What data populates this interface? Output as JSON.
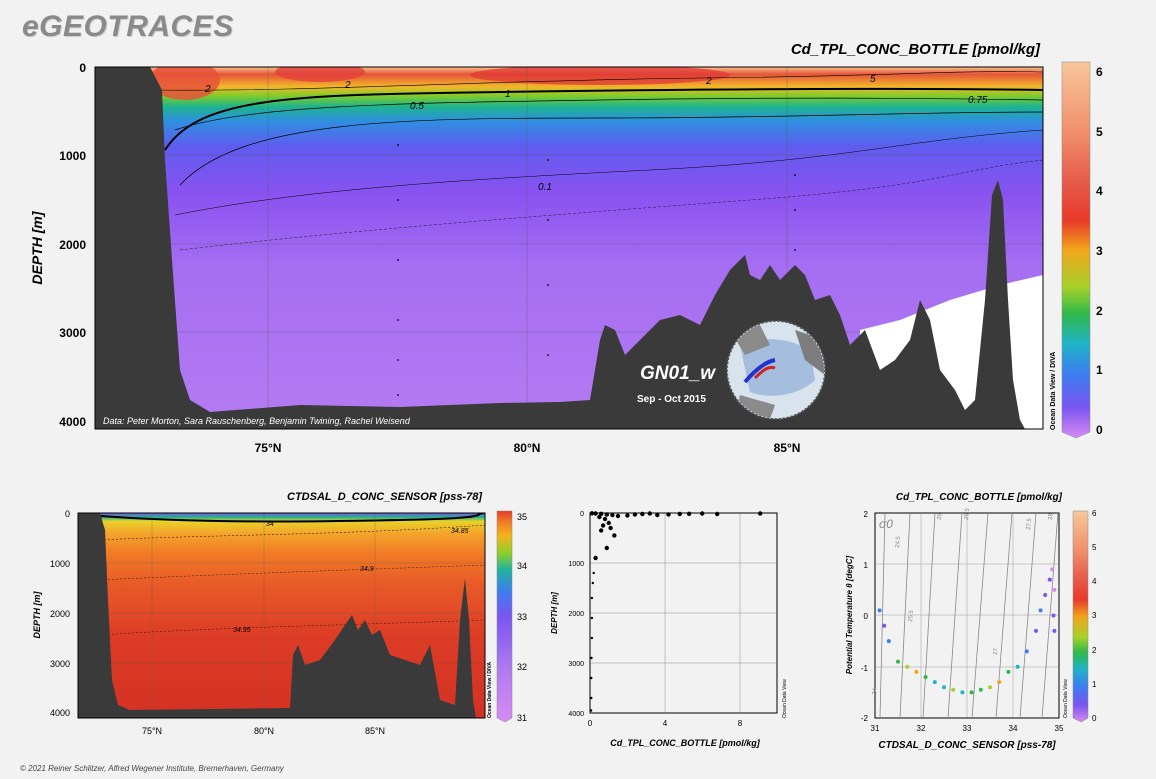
{
  "header": {
    "logo": "eGEOTRACES",
    "footer": "© 2021 Reiner Schlitzer, Alfred Wegener Institute, Bremerhaven, Germany"
  },
  "colors": {
    "seafloor": "#3a3a3a",
    "background": "#f2f2f2",
    "deep_purple": "#b57bf2",
    "mid_purple": "#9c62f2"
  },
  "chart_data": [
    {
      "id": "main-section",
      "type": "heatmap",
      "title": "Cd_TPL_CONC_BOTTLE [pmol/kg]",
      "ylabel": "DEPTH [m]",
      "xlim": [
        72,
        90
      ],
      "ylim": [
        4000,
        0
      ],
      "xticks": [
        75,
        80,
        85
      ],
      "xtick_labels": [
        "75°N",
        "80°N",
        "85°N"
      ],
      "yticks": [
        0,
        1000,
        2000,
        3000,
        4000
      ],
      "ytick_labels": [
        "0",
        "1000",
        "2000",
        "3000",
        "4000"
      ],
      "colorbar": {
        "min": 0,
        "max": 6,
        "ticks": [
          "0",
          "1",
          "2",
          "3",
          "4",
          "5",
          "6"
        ]
      },
      "contour_labels": [
        "2",
        "2",
        "2",
        "5",
        "1",
        "0.75",
        "0.5",
        "0.1"
      ],
      "station_label": "GN01_w",
      "date_label": "Sep - Oct 2015",
      "credit": "Data: Peter Morton, Sara Rauschenberg, Benjamin Twining, Rachel Weisend",
      "side_label": "Ocean Data View / DIVA"
    },
    {
      "id": "salinity-section",
      "type": "heatmap",
      "title": "CTDSAL_D_CONC_SENSOR [pss-78]",
      "ylabel": "DEPTH [m]",
      "xlim": [
        72,
        90
      ],
      "ylim": [
        4000,
        0
      ],
      "xticks": [
        75,
        80,
        85
      ],
      "xtick_labels": [
        "75°N",
        "80°N",
        "85°N"
      ],
      "yticks": [
        0,
        1000,
        2000,
        3000,
        4000
      ],
      "ytick_labels": [
        "0",
        "1000",
        "2000",
        "3000",
        "4000"
      ],
      "colorbar": {
        "min": 31,
        "max": 35,
        "ticks": [
          "31",
          "32",
          "33",
          "34",
          "35"
        ]
      },
      "contour_labels": [
        "34",
        "34.85",
        "34.9",
        "34.95"
      ],
      "side_label": "Ocean Data View / DIVA"
    },
    {
      "id": "profile-scatter",
      "type": "scatter",
      "xlabel": "Cd_TPL_CONC_BOTTLE [pmol/kg]",
      "ylabel": "DEPTH [m]",
      "xlim": [
        0,
        10
      ],
      "ylim": [
        4000,
        0
      ],
      "xticks": [
        "0",
        "4",
        "8"
      ],
      "yticks": [
        "0",
        "1000",
        "2000",
        "3000",
        "4000"
      ],
      "side_label": "Ocean Data View",
      "points": [
        [
          0.1,
          5
        ],
        [
          0.3,
          10
        ],
        [
          0.6,
          15
        ],
        [
          0.9,
          30
        ],
        [
          1.2,
          40
        ],
        [
          1.5,
          60
        ],
        [
          2.0,
          50
        ],
        [
          2.4,
          30
        ],
        [
          2.8,
          20
        ],
        [
          3.2,
          10
        ],
        [
          3.6,
          40
        ],
        [
          4.2,
          30
        ],
        [
          4.8,
          20
        ],
        [
          5.3,
          15
        ],
        [
          6.0,
          10
        ],
        [
          6.8,
          20
        ],
        [
          9.1,
          10
        ],
        [
          0.5,
          80
        ],
        [
          0.8,
          120
        ],
        [
          1.0,
          200
        ],
        [
          0.7,
          250
        ],
        [
          1.1,
          300
        ],
        [
          0.6,
          350
        ],
        [
          1.3,
          450
        ],
        [
          0.9,
          700
        ],
        [
          0.3,
          900
        ],
        [
          0.2,
          1200
        ],
        [
          0.15,
          1400
        ],
        [
          0.1,
          1700
        ],
        [
          0.1,
          2100
        ],
        [
          0.1,
          2500
        ],
        [
          0.08,
          2900
        ],
        [
          0.07,
          3300
        ],
        [
          0.07,
          3700
        ],
        [
          0.06,
          3950
        ]
      ]
    },
    {
      "id": "ts-diagram",
      "type": "scatter",
      "title": "Cd_TPL_CONC_BOTTLE [pmol/kg]",
      "xlabel": "CTDSAL_D_CONC_SENSOR [pss-78]",
      "ylabel": "Potential Temperature θ [degC]",
      "xlim": [
        31,
        35
      ],
      "ylim": [
        -2,
        2
      ],
      "xticks": [
        "31",
        "32",
        "33",
        "34",
        "35"
      ],
      "yticks": [
        "-2",
        "-1",
        "0",
        "1",
        "2"
      ],
      "sigma_label": "σ0",
      "isopycnal_labels": [
        "24",
        "24.5",
        "25.5",
        "26",
        "26.5",
        "27",
        "27.5",
        "28"
      ],
      "colorbar": {
        "min": 0,
        "max": 6,
        "ticks": [
          "0",
          "1",
          "2",
          "3",
          "4",
          "5",
          "6"
        ]
      },
      "side_label": "Ocean Data View",
      "points": [
        [
          31.1,
          0.1,
          1.2
        ],
        [
          31.2,
          -0.2,
          0.8
        ],
        [
          31.3,
          -0.5,
          1.0
        ],
        [
          31.5,
          -0.9,
          2.1
        ],
        [
          31.7,
          -1.0,
          2.5
        ],
        [
          31.9,
          -1.1,
          3.0
        ],
        [
          32.1,
          -1.2,
          2.2
        ],
        [
          32.3,
          -1.3,
          1.8
        ],
        [
          32.5,
          -1.4,
          1.6
        ],
        [
          32.7,
          -1.45,
          2.7
        ],
        [
          32.9,
          -1.5,
          1.9
        ],
        [
          33.1,
          -1.5,
          2.3
        ],
        [
          33.3,
          -1.45,
          2.0
        ],
        [
          33.5,
          -1.4,
          2.9
        ],
        [
          33.7,
          -1.3,
          3.3
        ],
        [
          33.9,
          -1.1,
          2.4
        ],
        [
          34.1,
          -1.0,
          1.5
        ],
        [
          34.3,
          -0.7,
          1.1
        ],
        [
          34.5,
          -0.3,
          0.9
        ],
        [
          34.6,
          0.1,
          1.2
        ],
        [
          34.7,
          0.4,
          0.8
        ],
        [
          34.8,
          0.7,
          0.5
        ],
        [
          34.85,
          0.9,
          0.3
        ],
        [
          34.9,
          0.5,
          0.4
        ],
        [
          34.88,
          0.0,
          0.5
        ],
        [
          34.9,
          -0.3,
          0.6
        ]
      ]
    }
  ]
}
